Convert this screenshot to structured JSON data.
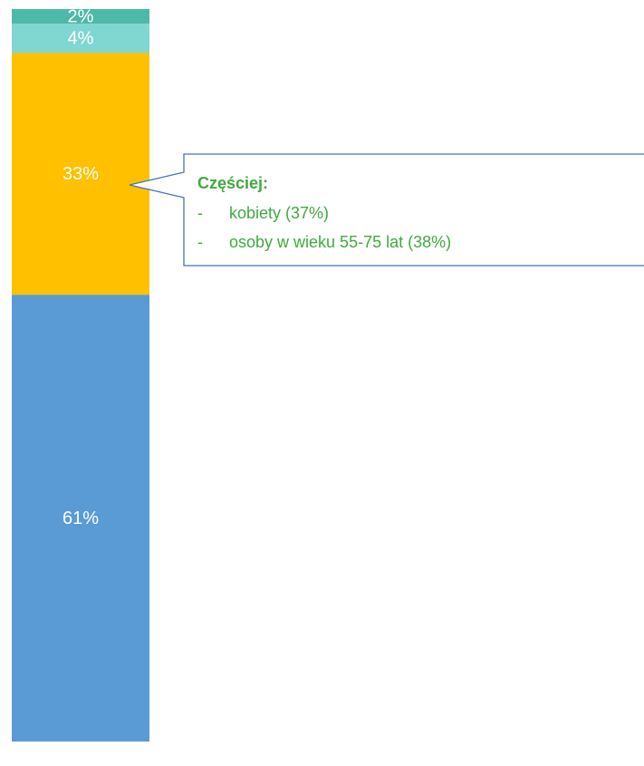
{
  "chart_data": {
    "type": "bar",
    "stacked": true,
    "categories": [
      null
    ],
    "series": [
      {
        "color": "#5b9bd5",
        "values": [
          61
        ],
        "value_labels": [
          "61%"
        ]
      },
      {
        "color": "#ffc000",
        "values": [
          33
        ],
        "value_labels": [
          "33%"
        ]
      },
      {
        "color": "#80d6d0",
        "values": [
          4
        ],
        "value_labels": [
          "4%"
        ]
      },
      {
        "color": "#4fb9a9",
        "values": [
          2
        ],
        "value_labels": [
          "2%"
        ]
      }
    ],
    "ylim": [
      0,
      100
    ],
    "annotation": {
      "title": "Częściej:",
      "bullet": "-",
      "items": [
        "kobiety (37%)",
        "osoby w wieku 55-75 lat (38%)"
      ],
      "color": "#3faa3f",
      "border": "#4472c4"
    }
  }
}
